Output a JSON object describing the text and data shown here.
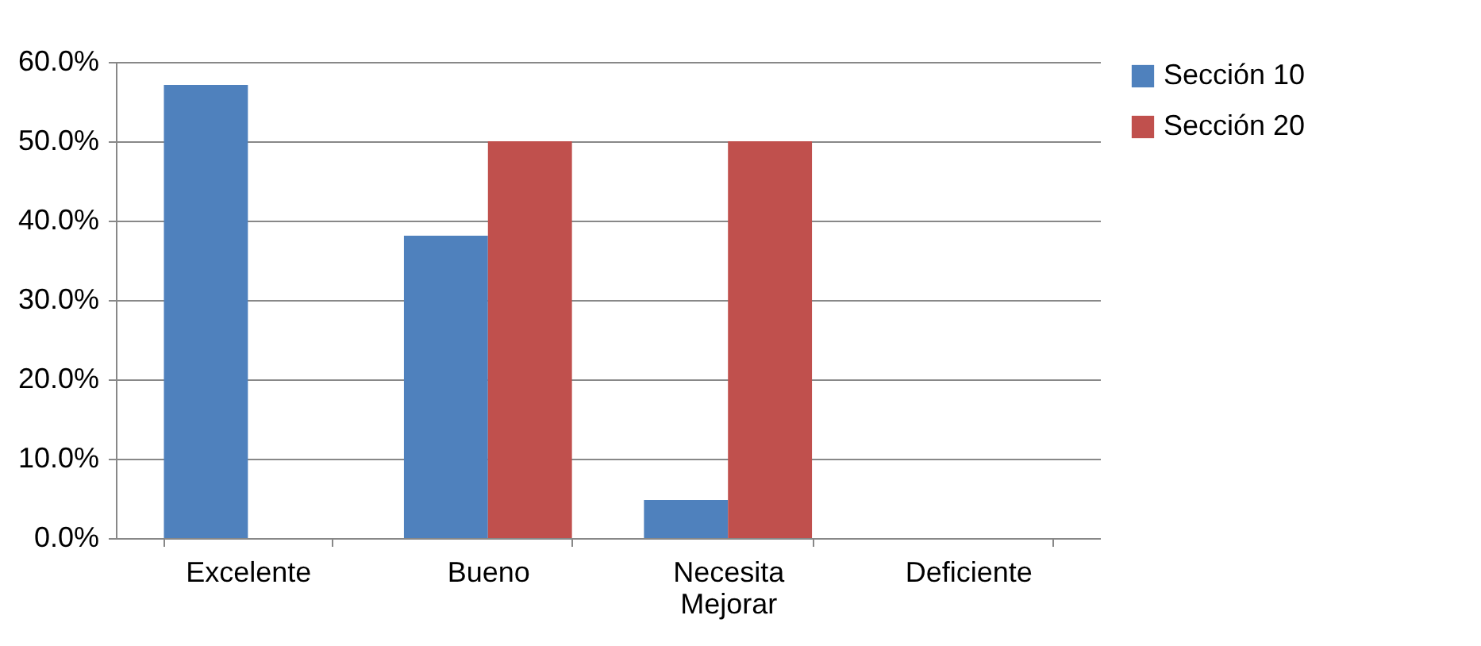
{
  "chart_data": {
    "type": "bar",
    "categories": [
      "Excelente",
      "Bueno",
      "Necesita Mejorar",
      "Deficiente"
    ],
    "series": [
      {
        "name": "Sección 10",
        "color": "#4f81bd",
        "values": [
          57.1,
          38.1,
          4.8,
          0
        ]
      },
      {
        "name": "Sección 20",
        "color": "#c0504d",
        "values": [
          0,
          50,
          50,
          0
        ]
      }
    ],
    "ylim": [
      0,
      60
    ],
    "yticks": [
      {
        "value": 0,
        "label": "0.0%"
      },
      {
        "value": 10,
        "label": "10.0%"
      },
      {
        "value": 20,
        "label": "20.0%"
      },
      {
        "value": 30,
        "label": "30.0%"
      },
      {
        "value": 40,
        "label": "40.0%"
      },
      {
        "value": 50,
        "label": "50.0%"
      },
      {
        "value": 60,
        "label": "60.0%"
      }
    ],
    "grid": "y",
    "legend": "right"
  }
}
